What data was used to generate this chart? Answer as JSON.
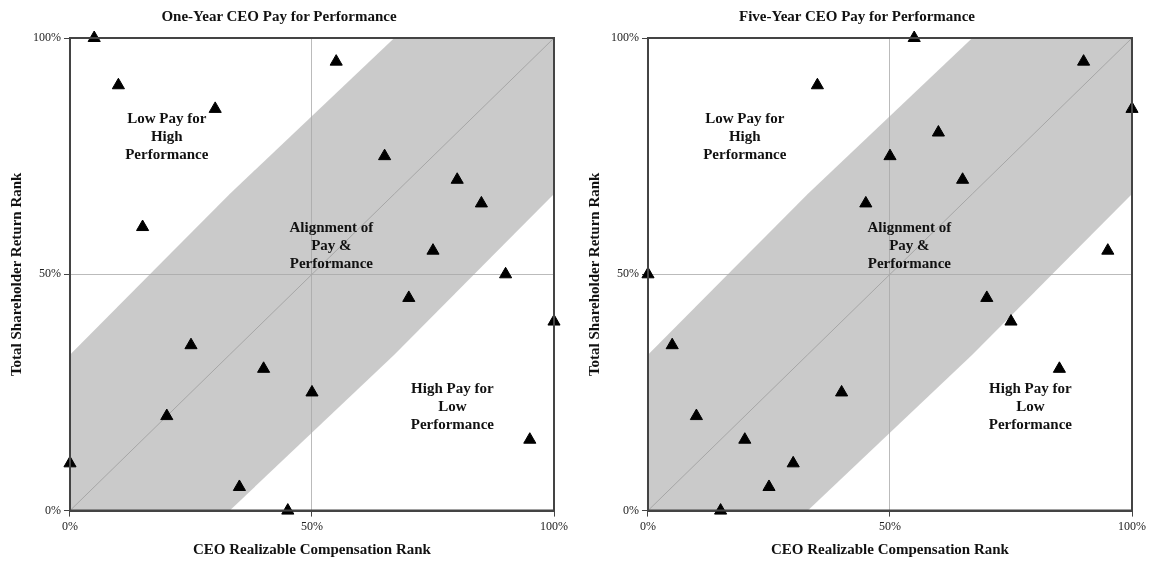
{
  "chart_data": [
    {
      "type": "scatter",
      "title": "One-Year CEO Pay for Performance",
      "xlabel": "CEO Realizable Compensation Rank",
      "ylabel": "Total Shareholder Return Rank",
      "xlim": [
        0,
        100
      ],
      "ylim": [
        0,
        100
      ],
      "xticks": [
        {
          "value": 0,
          "label": "0%"
        },
        {
          "value": 50,
          "label": "50%"
        },
        {
          "value": 100,
          "label": "100%"
        }
      ],
      "yticks": [
        {
          "value": 0,
          "label": "0%"
        },
        {
          "value": 50,
          "label": "50%"
        },
        {
          "value": 100,
          "label": "100%"
        }
      ],
      "grid": true,
      "legend": false,
      "series": [
        {
          "type": "line",
          "color": "#a6a6a6",
          "marker": "none",
          "x": [
            0,
            33,
            67,
            100
          ],
          "values": [
            0,
            33,
            67,
            100
          ],
          "lower": [
            0,
            0,
            33,
            67
          ],
          "upper": [
            33,
            67,
            100,
            100
          ]
        },
        {
          "type": "scatter",
          "color": "#000000",
          "marker": "triangle",
          "x": [
            5,
            10,
            30,
            55,
            65,
            80,
            85,
            15,
            75,
            90,
            70,
            100,
            25,
            40,
            50,
            20,
            95,
            0,
            35,
            45
          ],
          "values": [
            100,
            90,
            85,
            95,
            75,
            70,
            65,
            60,
            55,
            50,
            45,
            40,
            35,
            30,
            25,
            20,
            15,
            10,
            5,
            0
          ]
        }
      ],
      "annotations": [
        "Low Pay for High Performance",
        "Alignment of Pay & Performance",
        "High Pay for Low Performance"
      ]
    },
    {
      "type": "scatter",
      "title": "Five-Year CEO Pay for Performance",
      "xlabel": "CEO Realizable Compensation Rank",
      "ylabel": "Total Shareholder Return Rank",
      "xlim": [
        0,
        100
      ],
      "ylim": [
        0,
        100
      ],
      "xticks": [
        {
          "value": 0,
          "label": "0%"
        },
        {
          "value": 50,
          "label": "50%"
        },
        {
          "value": 100,
          "label": "100%"
        }
      ],
      "yticks": [
        {
          "value": 0,
          "label": "0%"
        },
        {
          "value": 50,
          "label": "50%"
        },
        {
          "value": 100,
          "label": "100%"
        }
      ],
      "grid": true,
      "legend": false,
      "series": [
        {
          "type": "line",
          "color": "#a6a6a6",
          "marker": "none",
          "x": [
            0,
            33,
            67,
            100
          ],
          "values": [
            0,
            33,
            67,
            100
          ],
          "lower": [
            0,
            0,
            33,
            67
          ],
          "upper": [
            33,
            67,
            100,
            100
          ]
        },
        {
          "type": "scatter",
          "color": "#000000",
          "marker": "triangle",
          "x": [
            55,
            35,
            90,
            100,
            60,
            50,
            65,
            45,
            0,
            95,
            70,
            75,
            85,
            5,
            40,
            10,
            20,
            30,
            25,
            15
          ],
          "values": [
            100,
            90,
            95,
            85,
            80,
            75,
            70,
            65,
            50,
            55,
            45,
            40,
            30,
            35,
            25,
            20,
            15,
            10,
            5,
            0
          ]
        }
      ],
      "annotations": [
        "Low Pay for High Performance",
        "Alignment of Pay & Performance",
        "High Pay for Low Performance"
      ]
    }
  ]
}
